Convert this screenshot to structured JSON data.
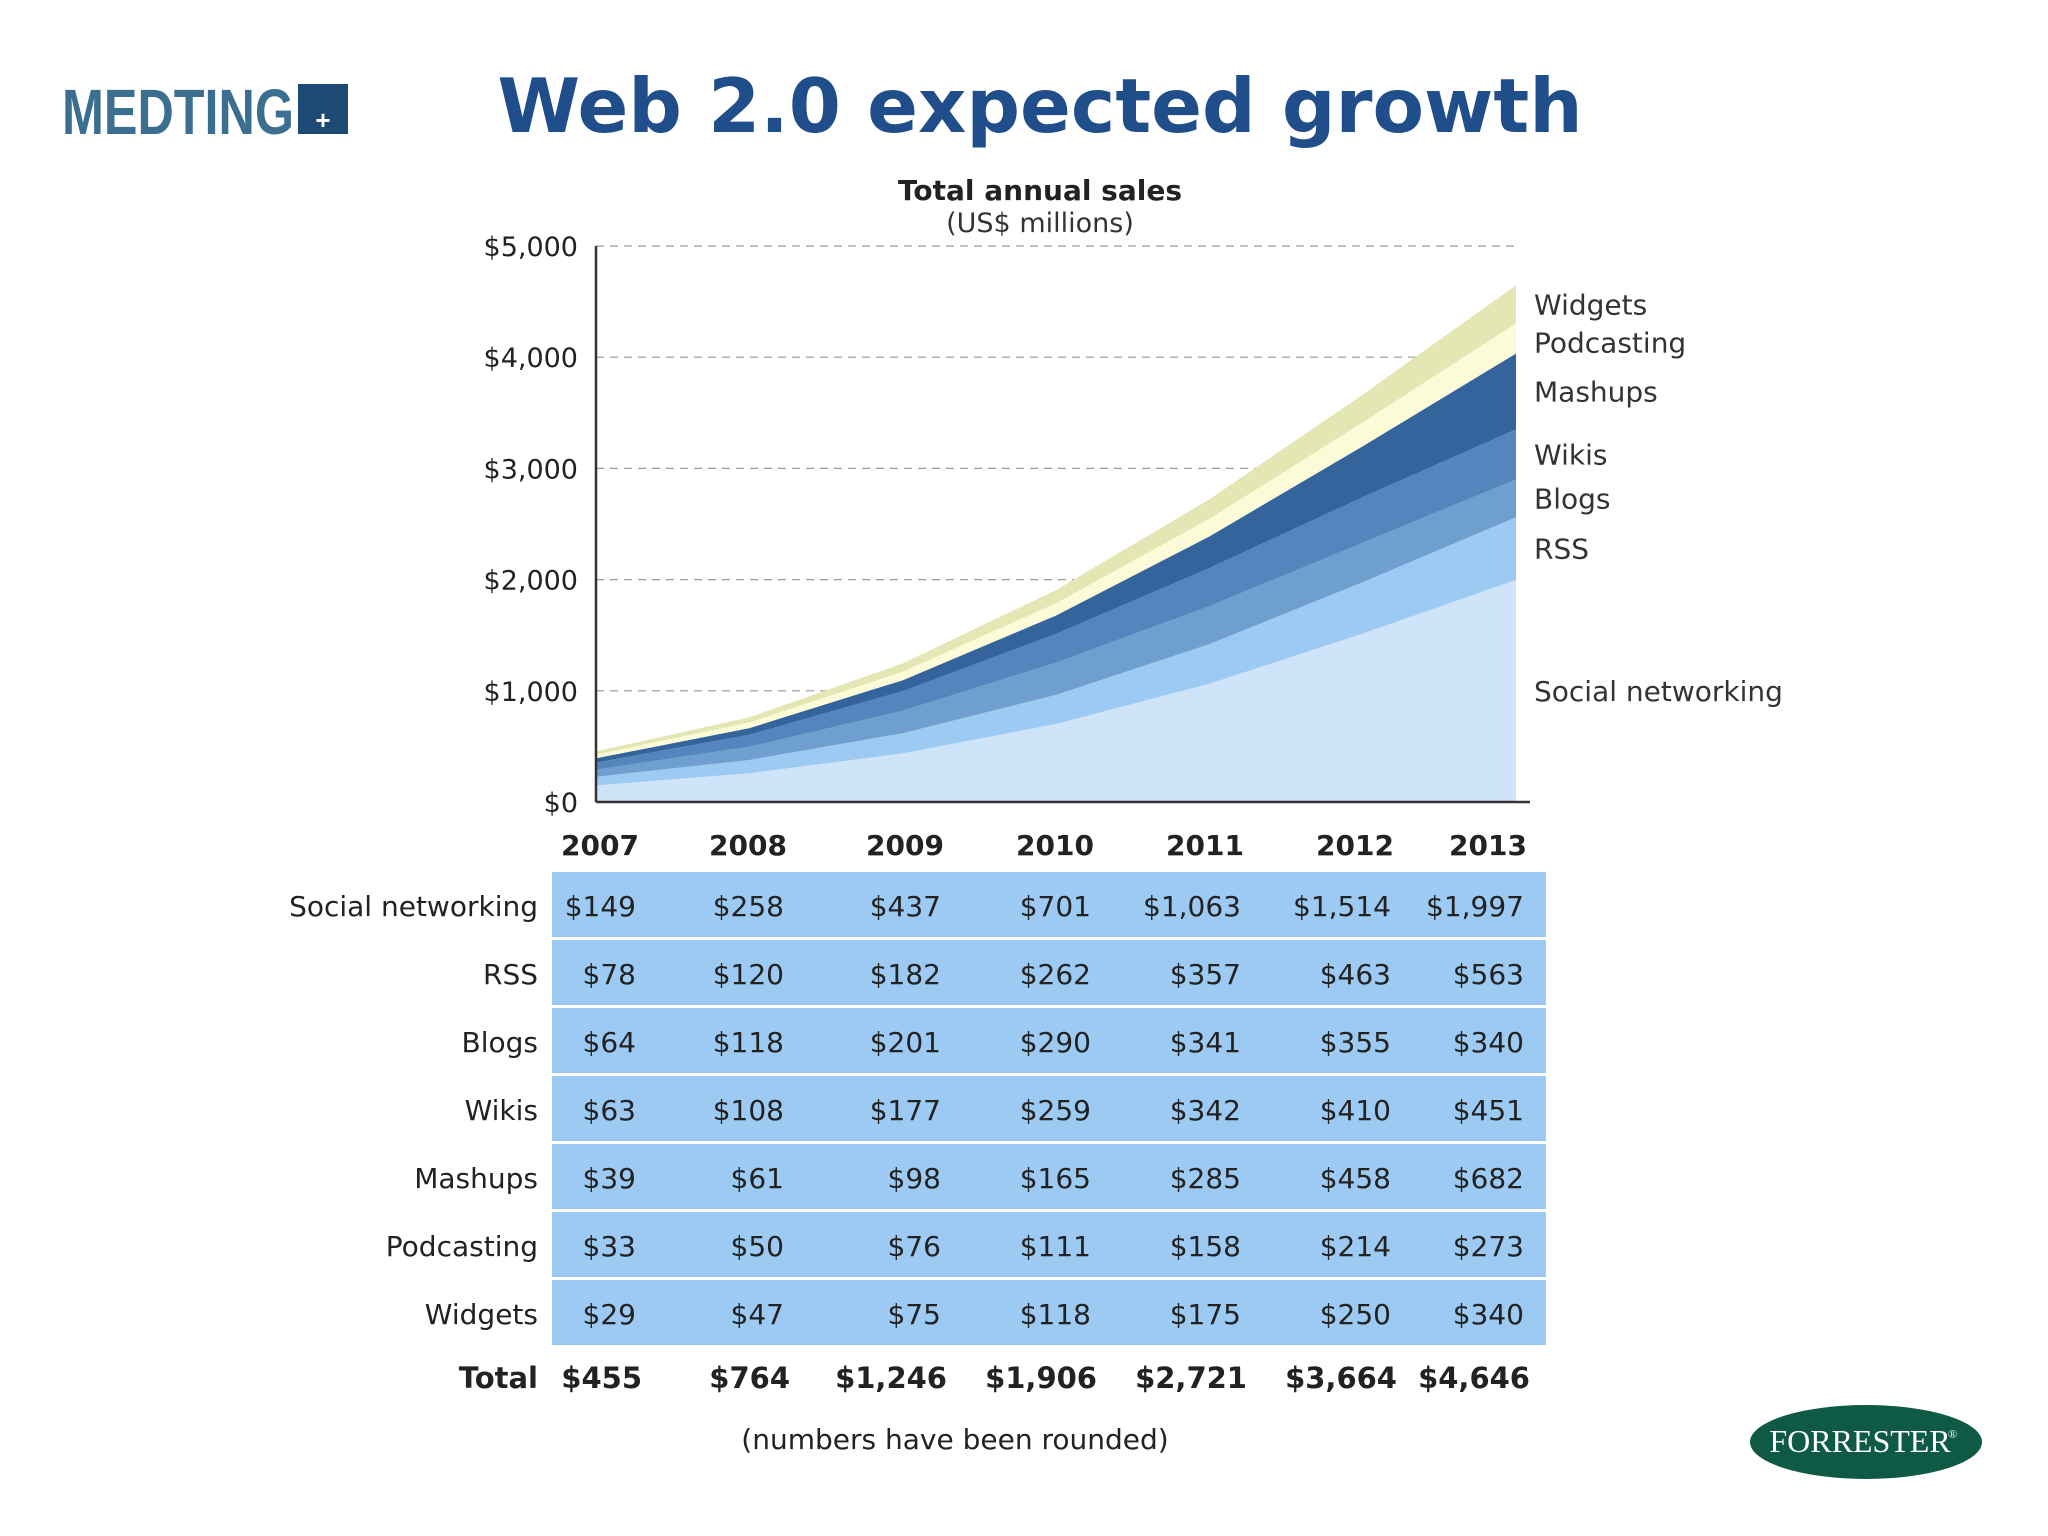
{
  "slide": {
    "title": "Web 2.0 expected growth",
    "logo_text": "MEDTING",
    "logo_mark": "+",
    "source_logo_text": "FORRESTER",
    "source_logo_mark": "®"
  },
  "chart_data": {
    "type": "area",
    "stacked": true,
    "title": "Total annual sales",
    "subtitle": "(US$ millions)",
    "x": [
      "2007",
      "2008",
      "2009",
      "2010",
      "2011",
      "2012",
      "2013"
    ],
    "ylim": [
      0,
      5000
    ],
    "yticks": [
      {
        "value": 0,
        "label": "$0"
      },
      {
        "value": 1000,
        "label": "$1,000"
      },
      {
        "value": 2000,
        "label": "$2,000"
      },
      {
        "value": 3000,
        "label": "$3,000"
      },
      {
        "value": 4000,
        "label": "$4,000"
      },
      {
        "value": 5000,
        "label": "$5,000"
      }
    ],
    "grid": true,
    "series": [
      {
        "name": "Social networking",
        "color": "#cfe3f9",
        "values": [
          149,
          258,
          437,
          701,
          1063,
          1514,
          1997
        ],
        "labels": [
          "$149",
          "$258",
          "$437",
          "$701",
          "$1,063",
          "$1,514",
          "$1,997"
        ]
      },
      {
        "name": "RSS",
        "color": "#9ccaf2",
        "values": [
          78,
          120,
          182,
          262,
          357,
          463,
          563
        ],
        "labels": [
          "$78",
          "$120",
          "$182",
          "$262",
          "$357",
          "$463",
          "$563"
        ]
      },
      {
        "name": "Blogs",
        "color": "#6e9fcf",
        "values": [
          64,
          118,
          201,
          290,
          341,
          355,
          340
        ],
        "labels": [
          "$64",
          "$118",
          "$201",
          "$290",
          "$341",
          "$355",
          "$340"
        ]
      },
      {
        "name": "Wikis",
        "color": "#5585bd",
        "values": [
          63,
          108,
          177,
          259,
          342,
          410,
          451
        ],
        "labels": [
          "$63",
          "$108",
          "$177",
          "$259",
          "$342",
          "$410",
          "$451"
        ]
      },
      {
        "name": "Mashups",
        "color": "#34649b",
        "values": [
          39,
          61,
          98,
          165,
          285,
          458,
          682
        ],
        "labels": [
          "$39",
          "$61",
          "$98",
          "$165",
          "$285",
          "$458",
          "$682"
        ]
      },
      {
        "name": "Podcasting",
        "color": "#fbfbd8",
        "values": [
          33,
          50,
          76,
          111,
          158,
          214,
          273
        ],
        "labels": [
          "$33",
          "$50",
          "$76",
          "$111",
          "$158",
          "$214",
          "$273"
        ]
      },
      {
        "name": "Widgets",
        "color": "#e4e6b4",
        "values": [
          29,
          47,
          75,
          118,
          175,
          250,
          340
        ],
        "labels": [
          "$29",
          "$47",
          "$75",
          "$118",
          "$175",
          "$250",
          "$340"
        ]
      }
    ],
    "total": {
      "name": "Total",
      "values": [
        "$455",
        "$764",
        "$1,246",
        "$1,906",
        "$2,721",
        "$3,664",
        "$4,646"
      ]
    },
    "table_fill": "#9ccaf2",
    "footnote": "(numbers have been rounded)"
  }
}
